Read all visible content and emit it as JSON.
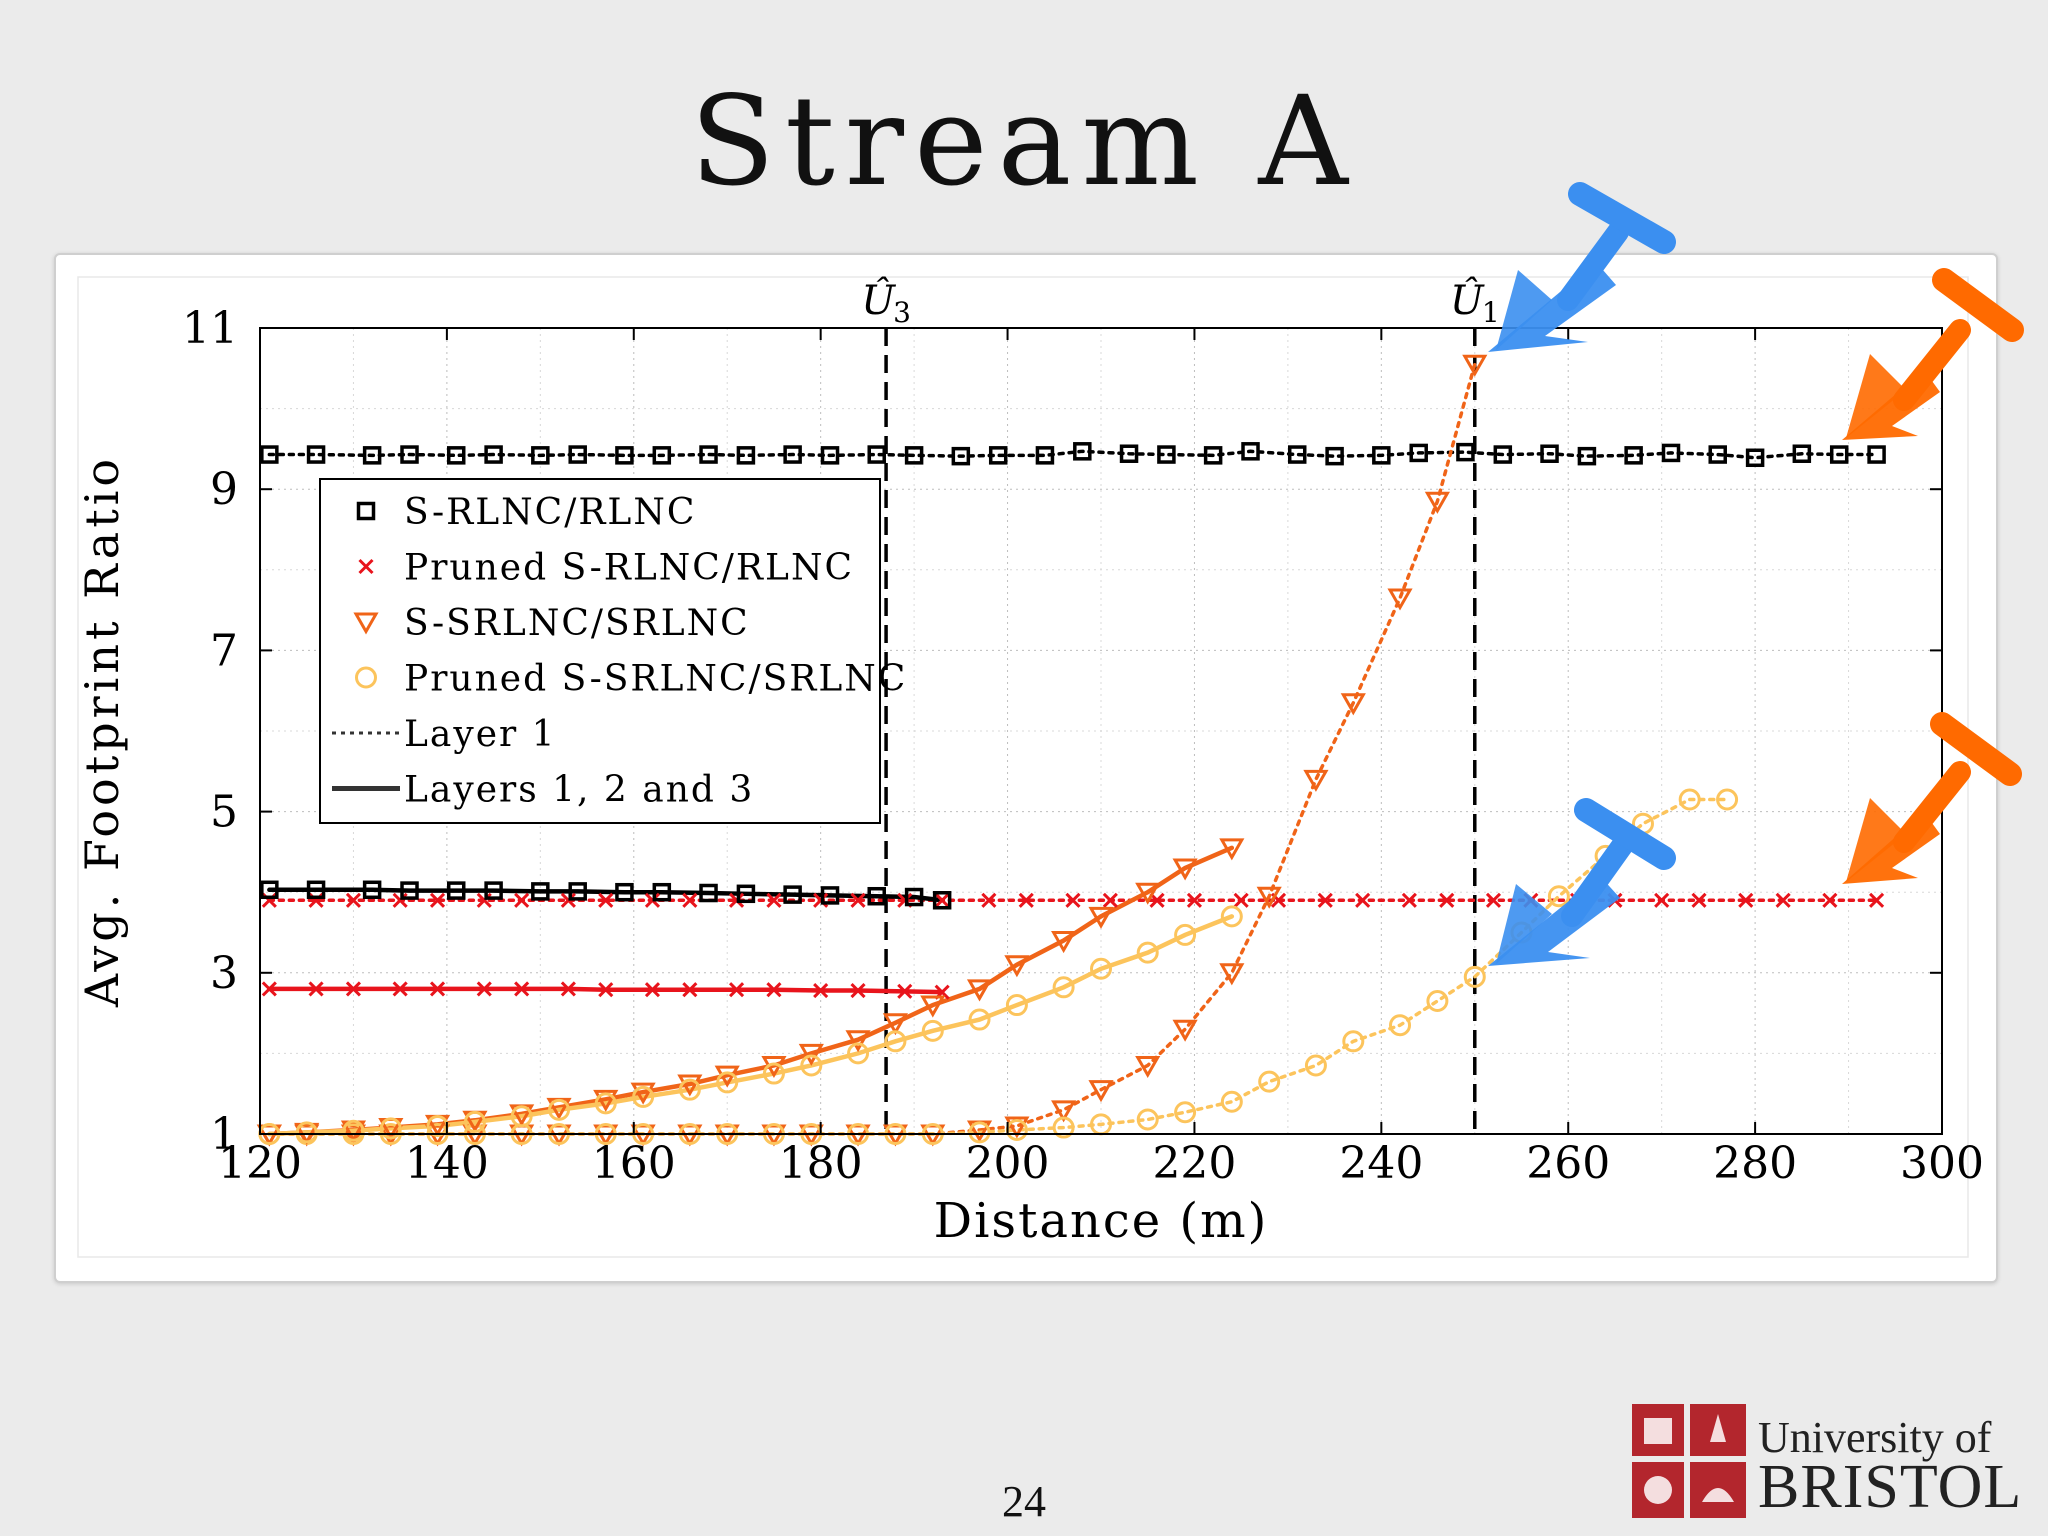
{
  "slide": {
    "title": "Stream A",
    "page_number": "24",
    "logo_line1": "University of",
    "logo_line2": "BRISTOL"
  },
  "annotation_colors": {
    "blue": "#3b8ff0",
    "orange": "#ff6a00"
  },
  "chart_data": {
    "type": "line",
    "xlabel": "Distance (m)",
    "ylabel": "Avg. Footprint Ratio",
    "xlim": [
      120,
      300
    ],
    "ylim": [
      1,
      11
    ],
    "xticks": [
      120,
      140,
      160,
      180,
      200,
      220,
      240,
      260,
      280,
      300
    ],
    "yticks": [
      1,
      3,
      5,
      7,
      9,
      11
    ],
    "grid": true,
    "legend_position": "upper-left",
    "vlines": [
      {
        "x": 187,
        "label": "Û",
        "sub": "3"
      },
      {
        "x": 250,
        "label": "Û",
        "sub": "1"
      }
    ],
    "legend": [
      {
        "label": "S-RLNC/RLNC",
        "marker": "square",
        "color": "#000000"
      },
      {
        "label": "Pruned S-RLNC/RLNC",
        "marker": "x",
        "color": "#e8141c"
      },
      {
        "label": "S-SRLNC/SRLNC",
        "marker": "triangle-down",
        "color": "#f06418"
      },
      {
        "label": "Pruned S-SRLNC/SRLNC",
        "marker": "circle",
        "color": "#fcc45c"
      },
      {
        "label": "Layer 1",
        "line": "dotted",
        "color": "#333333"
      },
      {
        "label": "Layers 1, 2 and 3",
        "line": "solid",
        "color": "#333333"
      }
    ],
    "series": [
      {
        "scheme": "S-RLNC/RLNC",
        "layer": "Layer 1",
        "marker": "square",
        "color": "#000000",
        "line": "dotted",
        "x": [
          121,
          126,
          132,
          136,
          141,
          145,
          150,
          154,
          159,
          163,
          168,
          172,
          177,
          181,
          186,
          190,
          195,
          199,
          204,
          208,
          213,
          217,
          222,
          226,
          231,
          235,
          240,
          244,
          249,
          253,
          258,
          262,
          267,
          271,
          276,
          280,
          285,
          289,
          293
        ],
        "y": [
          9.43,
          9.43,
          9.42,
          9.43,
          9.42,
          9.43,
          9.42,
          9.43,
          9.42,
          9.42,
          9.43,
          9.42,
          9.43,
          9.42,
          9.43,
          9.42,
          9.41,
          9.42,
          9.42,
          9.47,
          9.44,
          9.43,
          9.42,
          9.47,
          9.43,
          9.41,
          9.42,
          9.45,
          9.46,
          9.43,
          9.44,
          9.41,
          9.42,
          9.45,
          9.43,
          9.39,
          9.44,
          9.43,
          9.43
        ]
      },
      {
        "scheme": "Pruned S-RLNC/RLNC",
        "layer": "Layer 1",
        "marker": "x",
        "color": "#e8141c",
        "line": "dotted",
        "x": [
          121,
          126,
          130,
          135,
          139,
          144,
          148,
          153,
          157,
          162,
          166,
          171,
          175,
          180,
          184,
          189,
          193,
          198,
          202,
          207,
          211,
          216,
          220,
          225,
          229,
          234,
          238,
          243,
          247,
          252,
          256,
          261,
          265,
          270,
          274,
          279,
          283,
          288,
          293
        ],
        "y": [
          3.9,
          3.9,
          3.9,
          3.9,
          3.9,
          3.9,
          3.9,
          3.9,
          3.9,
          3.9,
          3.9,
          3.9,
          3.9,
          3.9,
          3.9,
          3.9,
          3.9,
          3.9,
          3.9,
          3.9,
          3.9,
          3.9,
          3.9,
          3.9,
          3.9,
          3.9,
          3.9,
          3.9,
          3.9,
          3.9,
          3.9,
          3.9,
          3.9,
          3.9,
          3.9,
          3.9,
          3.9,
          3.9,
          3.9
        ]
      },
      {
        "scheme": "S-SRLNC/SRLNC",
        "layer": "Layer 1",
        "marker": "triangle-down",
        "color": "#f06418",
        "line": "dotted",
        "x": [
          121,
          125,
          130,
          134,
          139,
          143,
          148,
          152,
          157,
          161,
          166,
          170,
          175,
          179,
          184,
          188,
          192,
          197,
          201,
          206,
          210,
          215,
          219,
          224,
          228,
          233,
          237,
          242,
          246,
          250
        ],
        "y": [
          1.0,
          1.0,
          1.0,
          1.0,
          1.0,
          1.0,
          1.0,
          1.0,
          1.0,
          1.0,
          1.0,
          1.0,
          1.0,
          1.0,
          1.0,
          1.0,
          1.0,
          1.05,
          1.1,
          1.3,
          1.55,
          1.85,
          2.3,
          3.0,
          3.95,
          5.4,
          6.35,
          7.65,
          8.85,
          10.55
        ]
      },
      {
        "scheme": "Pruned S-SRLNC/SRLNC",
        "layer": "Layer 1",
        "marker": "circle",
        "color": "#fcc45c",
        "line": "dotted",
        "x": [
          121,
          125,
          130,
          134,
          139,
          143,
          148,
          152,
          157,
          161,
          166,
          170,
          175,
          179,
          184,
          188,
          192,
          197,
          201,
          206,
          210,
          215,
          219,
          224,
          228,
          233,
          237,
          242,
          246,
          250,
          255,
          259,
          264,
          268,
          273,
          277
        ],
        "y": [
          1.0,
          1.0,
          1.0,
          1.0,
          1.0,
          1.0,
          1.0,
          1.0,
          1.0,
          1.0,
          1.0,
          1.0,
          1.0,
          1.0,
          1.0,
          1.0,
          1.0,
          1.02,
          1.05,
          1.08,
          1.12,
          1.18,
          1.27,
          1.4,
          1.65,
          1.85,
          2.15,
          2.35,
          2.65,
          2.95,
          3.5,
          3.95,
          4.45,
          4.85,
          5.15,
          5.15
        ]
      },
      {
        "scheme": "S-RLNC/RLNC",
        "layer": "Layers 1, 2 and 3",
        "marker": "square",
        "color": "#000000",
        "line": "solid",
        "x": [
          121,
          126,
          132,
          136,
          141,
          145,
          150,
          154,
          159,
          163,
          168,
          172,
          177,
          181,
          186,
          190,
          193
        ],
        "y": [
          4.03,
          4.03,
          4.03,
          4.02,
          4.02,
          4.02,
          4.01,
          4.01,
          4.0,
          4.0,
          3.99,
          3.98,
          3.97,
          3.96,
          3.95,
          3.94,
          3.9
        ]
      },
      {
        "scheme": "Pruned S-RLNC/RLNC",
        "layer": "Layers 1, 2 and 3",
        "marker": "x",
        "color": "#e8141c",
        "line": "solid",
        "x": [
          121,
          126,
          130,
          135,
          139,
          144,
          148,
          153,
          157,
          162,
          166,
          171,
          175,
          180,
          184,
          189,
          193
        ],
        "y": [
          2.8,
          2.8,
          2.8,
          2.8,
          2.8,
          2.8,
          2.8,
          2.8,
          2.79,
          2.79,
          2.79,
          2.79,
          2.79,
          2.78,
          2.78,
          2.77,
          2.76
        ]
      },
      {
        "scheme": "S-SRLNC/SRLNC",
        "layer": "Layers 1, 2 and 3",
        "marker": "triangle-down",
        "color": "#f06418",
        "line": "solid",
        "x": [
          121,
          125,
          130,
          134,
          139,
          143,
          148,
          152,
          157,
          161,
          166,
          170,
          175,
          179,
          184,
          188,
          192,
          197,
          201,
          206,
          210,
          215,
          219,
          224
        ],
        "y": [
          1.0,
          1.02,
          1.05,
          1.08,
          1.12,
          1.17,
          1.25,
          1.33,
          1.43,
          1.52,
          1.62,
          1.73,
          1.85,
          2.0,
          2.17,
          2.38,
          2.6,
          2.8,
          3.1,
          3.4,
          3.7,
          4.0,
          4.3,
          4.55
        ]
      },
      {
        "scheme": "Pruned S-SRLNC/SRLNC",
        "layer": "Layers 1, 2 and 3",
        "marker": "circle",
        "color": "#fcc45c",
        "line": "solid",
        "x": [
          121,
          125,
          130,
          134,
          139,
          143,
          148,
          152,
          157,
          161,
          166,
          170,
          175,
          179,
          184,
          188,
          192,
          197,
          201,
          206,
          210,
          215,
          219,
          224
        ],
        "y": [
          1.0,
          1.02,
          1.04,
          1.07,
          1.1,
          1.15,
          1.22,
          1.3,
          1.38,
          1.46,
          1.55,
          1.64,
          1.75,
          1.85,
          2.0,
          2.15,
          2.28,
          2.42,
          2.6,
          2.82,
          3.05,
          3.25,
          3.47,
          3.7
        ]
      }
    ]
  }
}
